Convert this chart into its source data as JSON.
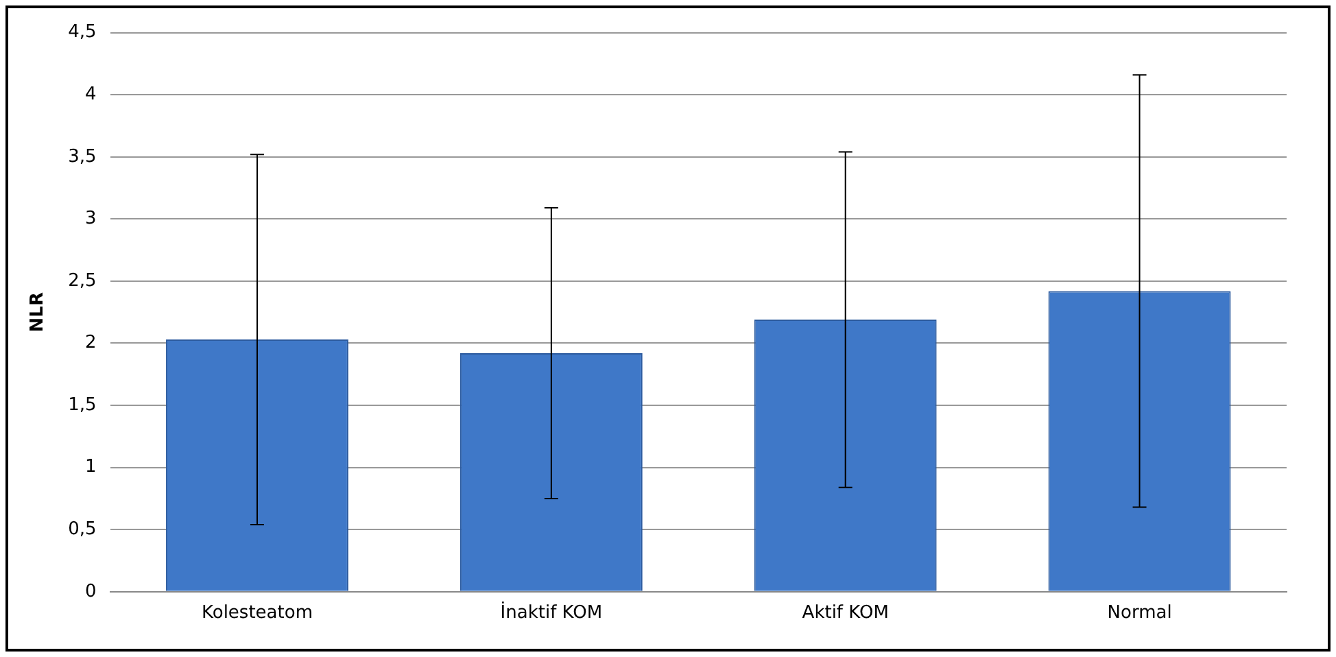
{
  "chart_data": {
    "type": "bar",
    "ylabel": "NLR",
    "categories": [
      "Kolesteatom",
      "İnaktif KOM",
      "Aktif KOM",
      "Normal"
    ],
    "values": [
      2.03,
      1.92,
      2.19,
      2.42
    ],
    "errors": [
      1.49,
      1.17,
      1.35,
      1.74
    ],
    "color": "#3f78c8",
    "ylim": [
      0,
      4.5
    ],
    "yticks": [
      0,
      {
        "value": 0.5,
        "label": "0,5"
      },
      1,
      {
        "value": 1.5,
        "label": "1,5"
      },
      2,
      {
        "value": 2.5,
        "label": "2,5"
      },
      3,
      {
        "value": 3.5,
        "label": "3,5"
      },
      4,
      {
        "value": 4.5,
        "label": "4,5"
      }
    ],
    "grid": "y",
    "legend": false
  }
}
